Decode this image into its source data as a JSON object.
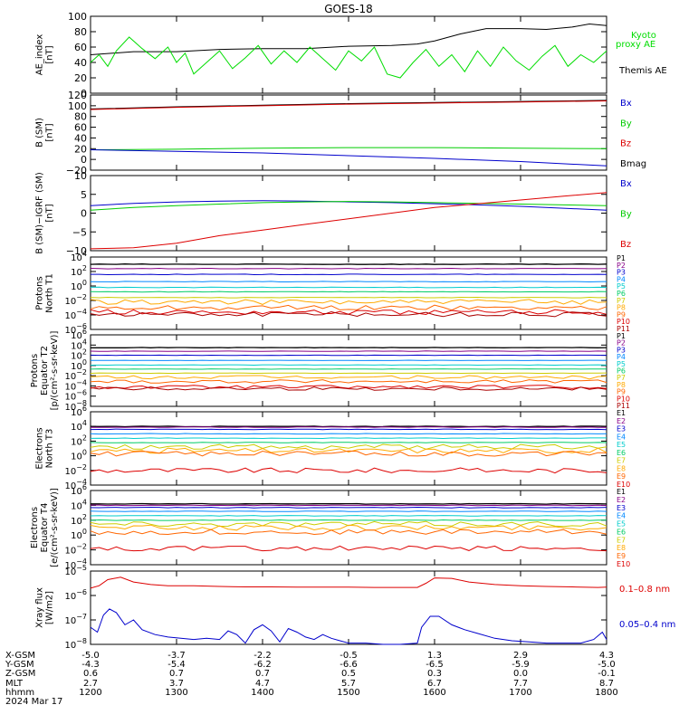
{
  "title": "GOES-18",
  "x_ticks": [
    "1200",
    "1300",
    "1400",
    "1500",
    "1600",
    "1700",
    "1800"
  ],
  "orbit_rows": [
    {
      "label": "X-GSM",
      "values": [
        "-5.0",
        "-3.7",
        "-2.2",
        "-0.5",
        "1.3",
        "2.9",
        "4.3"
      ]
    },
    {
      "label": "Y-GSM",
      "values": [
        "-4.3",
        "-5.4",
        "-6.2",
        "-6.6",
        "-6.5",
        "-5.9",
        "-5.0"
      ]
    },
    {
      "label": "Z-GSM",
      "values": [
        "0.6",
        "0.7",
        "0.7",
        "0.5",
        "0.3",
        "0.0",
        "-0.1"
      ]
    },
    {
      "label": "MLT",
      "values": [
        "2.7",
        "3.7",
        "4.7",
        "5.7",
        "6.7",
        "7.7",
        "8.7"
      ]
    },
    {
      "label": "hhmm",
      "values": [
        "1200",
        "1300",
        "1400",
        "1500",
        "1600",
        "1700",
        "1800"
      ]
    }
  ],
  "date_label": "2024 Mar 17",
  "chart_data": [
    {
      "type": "line",
      "id": "ae",
      "ylabel": [
        "AE_index",
        "[nT]"
      ],
      "ylim": [
        0,
        100
      ],
      "ticks": [
        "0",
        "20",
        "40",
        "60",
        "80",
        "100"
      ],
      "legend": [
        {
          "name": "Kyoto",
          "color": "#00dd00"
        },
        {
          "name": "proxy AE",
          "color": "#00dd00"
        },
        {
          "name": "Themis AE",
          "color": "#000000"
        }
      ],
      "series": [
        {
          "name": "Themis AE",
          "color": "#000000",
          "x": [
            12.0,
            12.5,
            13.0,
            13.5,
            14.0,
            14.5,
            15.0,
            15.5,
            15.8,
            16.0,
            16.3,
            16.6,
            17.0,
            17.3,
            17.6,
            17.8,
            18.0
          ],
          "y": [
            50,
            54,
            54,
            57,
            58,
            58,
            61,
            62,
            64,
            68,
            77,
            84,
            84,
            83,
            86,
            90,
            88
          ]
        },
        {
          "name": "Kyoto proxy AE",
          "color": "#00dd00",
          "x": [
            12.0,
            12.1,
            12.2,
            12.3,
            12.45,
            12.6,
            12.75,
            12.9,
            13.0,
            13.1,
            13.2,
            13.35,
            13.5,
            13.65,
            13.8,
            13.95,
            14.1,
            14.25,
            14.4,
            14.55,
            14.7,
            14.85,
            15.0,
            15.15,
            15.3,
            15.45,
            15.6,
            15.75,
            15.9,
            16.05,
            16.2,
            16.35,
            16.5,
            16.65,
            16.8,
            16.95,
            17.1,
            17.25,
            17.4,
            17.55,
            17.7,
            17.85,
            18.0
          ],
          "y": [
            40,
            50,
            35,
            55,
            73,
            58,
            45,
            60,
            40,
            52,
            25,
            40,
            55,
            32,
            46,
            62,
            38,
            55,
            40,
            60,
            45,
            30,
            55,
            42,
            60,
            25,
            20,
            40,
            57,
            35,
            50,
            28,
            55,
            35,
            60,
            42,
            30,
            48,
            62,
            35,
            50,
            40,
            55
          ]
        }
      ]
    },
    {
      "type": "line",
      "id": "bsm",
      "ylabel": [
        "B (SM)",
        "[nT]"
      ],
      "ylim": [
        -20,
        120
      ],
      "ticks": [
        "−20",
        "0",
        "20",
        "40",
        "60",
        "80",
        "100",
        "120"
      ],
      "legend": [
        {
          "name": "Bx",
          "color": "#0000cc"
        },
        {
          "name": "By",
          "color": "#00cc00"
        },
        {
          "name": "Bz",
          "color": "#dd0000"
        },
        {
          "name": "Bmag",
          "color": "#000000"
        }
      ],
      "series": [
        {
          "name": "Bmag",
          "color": "#000000",
          "x": [
            12,
            13,
            14,
            15,
            16,
            17,
            18
          ],
          "y": [
            94,
            98,
            101,
            104,
            106,
            108,
            110
          ]
        },
        {
          "name": "Bz",
          "color": "#dd0000",
          "x": [
            12,
            13,
            14,
            15,
            16,
            17,
            18
          ],
          "y": [
            93,
            97,
            100,
            103,
            105,
            107,
            109
          ]
        },
        {
          "name": "By",
          "color": "#00cc00",
          "x": [
            12,
            13,
            14,
            15,
            16,
            17,
            18
          ],
          "y": [
            18,
            19,
            21,
            22,
            22,
            21,
            20
          ]
        },
        {
          "name": "Bx",
          "color": "#0000cc",
          "x": [
            12,
            13,
            14,
            15,
            16,
            17,
            18
          ],
          "y": [
            18,
            15,
            12,
            7,
            2,
            -4,
            -12
          ]
        }
      ]
    },
    {
      "type": "line",
      "id": "bigrf",
      "ylabel": [
        "B (SM)−IGRF (SM)",
        "[nT]"
      ],
      "ylim": [
        -10,
        10
      ],
      "ticks": [
        "−10",
        "−5",
        "0",
        "5",
        "10"
      ],
      "legend": [
        {
          "name": "Bx",
          "color": "#0000cc"
        },
        {
          "name": "By",
          "color": "#00cc00"
        },
        {
          "name": "Bz",
          "color": "#dd0000"
        }
      ],
      "series": [
        {
          "name": "Bx",
          "color": "#0000cc",
          "x": [
            12,
            12.5,
            13,
            13.5,
            14,
            14.5,
            15,
            15.5,
            16,
            16.5,
            17,
            17.5,
            18
          ],
          "y": [
            2.0,
            2.6,
            3.0,
            3.2,
            3.3,
            3.2,
            3.0,
            2.8,
            2.5,
            2.2,
            1.8,
            1.3,
            0.8
          ]
        },
        {
          "name": "By",
          "color": "#00cc00",
          "x": [
            12,
            12.5,
            13,
            13.5,
            14,
            14.5,
            15,
            15.5,
            16,
            16.5,
            17,
            17.5,
            18
          ],
          "y": [
            0.8,
            1.5,
            2.0,
            2.4,
            2.8,
            3.0,
            3.1,
            3.0,
            2.8,
            2.6,
            2.4,
            2.2,
            2.0
          ]
        },
        {
          "name": "Bz",
          "color": "#dd0000",
          "x": [
            12,
            12.5,
            13,
            13.5,
            14,
            14.5,
            15,
            15.5,
            16,
            16.5,
            17,
            17.5,
            18
          ],
          "y": [
            -9.5,
            -9.2,
            -8.0,
            -6.0,
            -4.5,
            -3.0,
            -1.5,
            0.0,
            1.5,
            2.5,
            3.5,
            4.5,
            5.5
          ]
        }
      ]
    },
    {
      "type": "line",
      "id": "p_north",
      "ylabel": [
        "Protons",
        "North T1"
      ],
      "log": true,
      "ylim_exp": [
        -6,
        4
      ],
      "tick_exps": [
        -6,
        -4,
        -2,
        0,
        2,
        4
      ],
      "legend": [
        {
          "name": "P1",
          "color": "#000000"
        },
        {
          "name": "P2",
          "color": "#880088"
        },
        {
          "name": "P3",
          "color": "#0000cc"
        },
        {
          "name": "P4",
          "color": "#0088ff"
        },
        {
          "name": "P5",
          "color": "#00cccc"
        },
        {
          "name": "P6",
          "color": "#00cc66"
        },
        {
          "name": "P7",
          "color": "#cccc00"
        },
        {
          "name": "P8",
          "color": "#ffaa00"
        },
        {
          "name": "P9",
          "color": "#ff6600"
        },
        {
          "name": "P10",
          "color": "#dd0000"
        },
        {
          "name": "P11",
          "color": "#aa0000"
        }
      ],
      "series_exp": [
        3.0,
        2.4,
        1.6,
        0.6,
        -0.2,
        -0.8,
        -1.6,
        -2.2,
        -3.0,
        -3.6,
        -3.9
      ]
    },
    {
      "type": "line",
      "id": "p_equator",
      "ylabel": [
        "Protons",
        "Equator T2",
        "[p/(cm²-s-sr-keV)]"
      ],
      "log": true,
      "ylim_exp": [
        -8,
        6
      ],
      "tick_exps": [
        -8,
        -6,
        -4,
        -2,
        0,
        2,
        4,
        6
      ],
      "legend": [
        {
          "name": "P1",
          "color": "#000000"
        },
        {
          "name": "P2",
          "color": "#880088"
        },
        {
          "name": "P3",
          "color": "#0000cc"
        },
        {
          "name": "P4",
          "color": "#0088ff"
        },
        {
          "name": "P5",
          "color": "#00cccc"
        },
        {
          "name": "P6",
          "color": "#00cc66"
        },
        {
          "name": "P7",
          "color": "#cccc00"
        },
        {
          "name": "P8",
          "color": "#ffaa00"
        },
        {
          "name": "P9",
          "color": "#ff6600"
        },
        {
          "name": "P10",
          "color": "#dd0000"
        },
        {
          "name": "P11",
          "color": "#aa0000"
        }
      ],
      "series_exp": [
        3.5,
        2.8,
        2.0,
        1.0,
        0.1,
        -0.7,
        -1.5,
        -2.3,
        -3.1,
        -4.2,
        -4.5
      ]
    },
    {
      "type": "line",
      "id": "e_north",
      "ylabel": [
        "Electrons",
        "North T3"
      ],
      "log": true,
      "ylim_exp": [
        -4,
        6
      ],
      "tick_exps": [
        -4,
        -2,
        0,
        2,
        4,
        6
      ],
      "legend": [
        {
          "name": "E1",
          "color": "#000000"
        },
        {
          "name": "E2",
          "color": "#880088"
        },
        {
          "name": "E3",
          "color": "#0000cc"
        },
        {
          "name": "E4",
          "color": "#0088ff"
        },
        {
          "name": "E5",
          "color": "#00cccc"
        },
        {
          "name": "E6",
          "color": "#00cc66"
        },
        {
          "name": "E7",
          "color": "#cccc00"
        },
        {
          "name": "E8",
          "color": "#ffaa00"
        },
        {
          "name": "E9",
          "color": "#ff6600"
        },
        {
          "name": "E10",
          "color": "#dd0000"
        }
      ],
      "series_exp": [
        4.0,
        3.9,
        3.6,
        3.0,
        2.4,
        1.8,
        1.2,
        0.7,
        0.3,
        -2.0
      ]
    },
    {
      "type": "line",
      "id": "e_equator",
      "ylabel": [
        "Electrons",
        "Equator T4",
        "[e/(cm²-s-sr-keV)]"
      ],
      "log": true,
      "ylim_exp": [
        -4,
        6
      ],
      "tick_exps": [
        -4,
        -2,
        0,
        2,
        4,
        6
      ],
      "legend": [
        {
          "name": "E1",
          "color": "#000000"
        },
        {
          "name": "E2",
          "color": "#880088"
        },
        {
          "name": "E3",
          "color": "#0000cc"
        },
        {
          "name": "E4",
          "color": "#0088ff"
        },
        {
          "name": "E5",
          "color": "#00cccc"
        },
        {
          "name": "E6",
          "color": "#00cc66"
        },
        {
          "name": "E7",
          "color": "#cccc00"
        },
        {
          "name": "E8",
          "color": "#ffaa00"
        },
        {
          "name": "E9",
          "color": "#ff6600"
        },
        {
          "name": "E10",
          "color": "#dd0000"
        }
      ],
      "series_exp": [
        4.2,
        4.0,
        3.7,
        3.2,
        2.6,
        2.0,
        1.5,
        1.0,
        0.4,
        -1.8
      ]
    },
    {
      "type": "line",
      "id": "xray",
      "ylabel": [
        "Xray flux",
        "[W/m2]"
      ],
      "log": true,
      "ylim_exp": [
        -8,
        -5
      ],
      "tick_exps": [
        -8,
        -7,
        -6,
        -5
      ],
      "legend": [
        {
          "name": "0.1–0.8 nm",
          "color": "#dd0000"
        },
        {
          "name": "0.05–0.4 nm",
          "color": "#0000cc"
        }
      ],
      "series": [
        {
          "name": "0.1–0.8 nm",
          "color": "#dd0000",
          "x": [
            12.0,
            12.1,
            12.2,
            12.35,
            12.5,
            12.7,
            12.9,
            13.2,
            13.5,
            13.8,
            14.1,
            14.4,
            14.7,
            15.0,
            15.3,
            15.6,
            15.8,
            15.9,
            16.0,
            16.2,
            16.4,
            16.7,
            17.0,
            17.3,
            17.6,
            17.9,
            18.0
          ],
          "y": [
            -5.7,
            -5.6,
            -5.35,
            -5.25,
            -5.45,
            -5.55,
            -5.6,
            -5.6,
            -5.63,
            -5.65,
            -5.65,
            -5.66,
            -5.66,
            -5.66,
            -5.67,
            -5.67,
            -5.67,
            -5.5,
            -5.28,
            -5.3,
            -5.45,
            -5.55,
            -5.6,
            -5.63,
            -5.65,
            -5.67,
            -5.66
          ]
        },
        {
          "name": "0.05–0.4 nm",
          "color": "#0000cc",
          "x": [
            12.0,
            12.08,
            12.15,
            12.22,
            12.3,
            12.4,
            12.5,
            12.6,
            12.75,
            12.9,
            13.05,
            13.2,
            13.35,
            13.5,
            13.6,
            13.7,
            13.8,
            13.9,
            14.0,
            14.1,
            14.2,
            14.3,
            14.4,
            14.5,
            14.6,
            14.7,
            14.8,
            14.9,
            15.0,
            15.2,
            15.4,
            15.6,
            15.8,
            15.85,
            15.95,
            16.05,
            16.2,
            16.35,
            16.5,
            16.7,
            16.9,
            17.1,
            17.3,
            17.5,
            17.7,
            17.85,
            17.95,
            18.0
          ],
          "y": [
            -7.3,
            -7.5,
            -6.8,
            -6.55,
            -6.7,
            -7.2,
            -7.0,
            -7.4,
            -7.6,
            -7.7,
            -7.75,
            -7.8,
            -7.75,
            -7.8,
            -7.45,
            -7.6,
            -7.95,
            -7.4,
            -7.2,
            -7.45,
            -7.9,
            -7.35,
            -7.5,
            -7.7,
            -7.8,
            -7.6,
            -7.75,
            -7.85,
            -7.95,
            -7.95,
            -8.0,
            -8.0,
            -7.95,
            -7.3,
            -6.85,
            -6.85,
            -7.2,
            -7.4,
            -7.55,
            -7.75,
            -7.85,
            -7.9,
            -7.95,
            -7.95,
            -7.95,
            -7.8,
            -7.5,
            -7.8
          ]
        }
      ]
    }
  ]
}
